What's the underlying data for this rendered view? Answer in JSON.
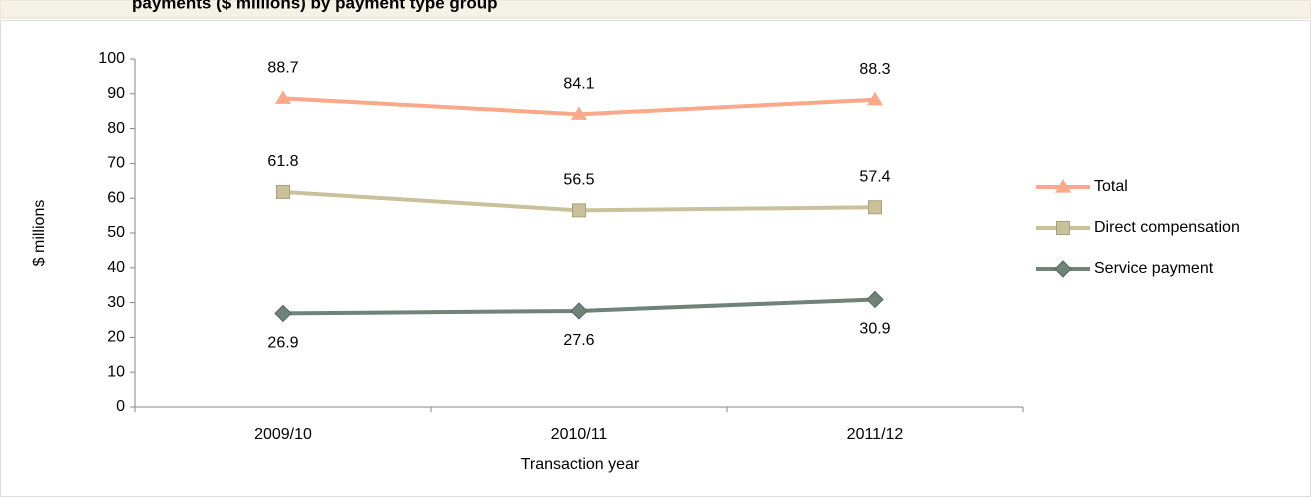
{
  "chart_data": {
    "type": "line",
    "title": "payments ($ millions) by payment type group",
    "x_label": "Transaction year",
    "y_label": "$ millions",
    "categories": [
      "2009/10",
      "2010/11",
      "2011/12"
    ],
    "series": [
      {
        "name": "Total",
        "color": "#f9a98a",
        "marker": "triangle",
        "values": [
          88.7,
          84.1,
          88.3
        ]
      },
      {
        "name": "Direct compensation",
        "color": "#c9c19c",
        "marker": "square",
        "values": [
          61.8,
          56.5,
          57.4
        ]
      },
      {
        "name": "Service payment",
        "color": "#6f8379",
        "marker": "diamond",
        "values": [
          26.9,
          27.6,
          30.9
        ]
      }
    ],
    "ylim": [
      0,
      100
    ],
    "yticks": [
      0,
      10,
      20,
      30,
      40,
      50,
      60,
      70,
      80,
      90,
      100
    ],
    "legend": "right"
  }
}
